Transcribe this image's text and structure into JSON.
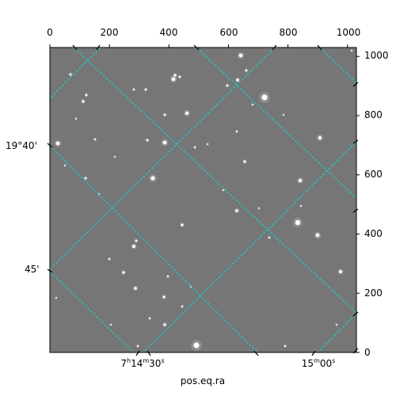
{
  "image": {
    "type": "astronomical sky image with world coordinate grid overlay",
    "background_color": "#767676",
    "grid_color": "#00e0e0",
    "star_color": "#ffffff",
    "pixel_axes": {
      "x_ticks": [
        "0",
        "200",
        "400",
        "600",
        "800",
        "1000"
      ],
      "x_tick_values": [
        0,
        200,
        400,
        600,
        800,
        1000
      ],
      "x_range": [
        0,
        1030
      ],
      "y_ticks": [
        "0",
        "200",
        "400",
        "600",
        "800",
        "1000"
      ],
      "y_tick_values": [
        0,
        200,
        400,
        600,
        800,
        1000
      ],
      "y_range": [
        0,
        1030
      ]
    },
    "world_axes": {
      "ra_ticks": [
        {
          "h": "7",
          "m": "14",
          "s": "30",
          "prefix": "7",
          "hsup": "h",
          "mid": "14",
          "msup": "m",
          "end": "30",
          "ssup": "s"
        },
        {
          "h": "",
          "m": "15",
          "s": "00",
          "prefix": "",
          "hsup": "",
          "mid": "15",
          "msup": "m",
          "end": "00",
          "ssup": "s"
        }
      ],
      "dec_ticks": [
        "19°40'",
        "45'"
      ],
      "xlabel": "pos.eq.ra"
    }
  }
}
